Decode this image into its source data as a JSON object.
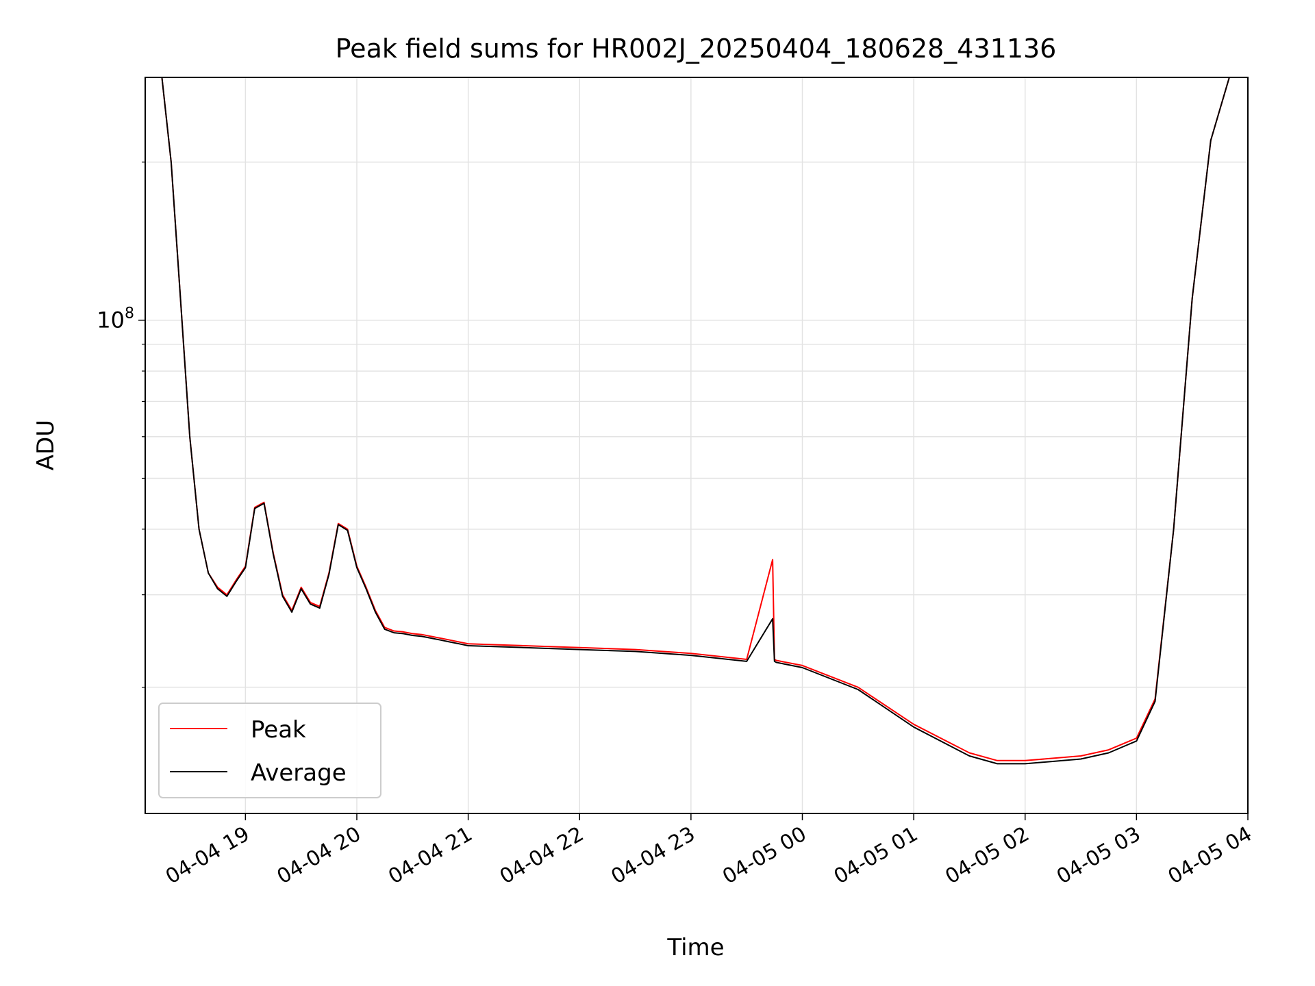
{
  "chart_data": {
    "type": "line",
    "title": "Peak field sums for HR002J_20250404_180628_431136",
    "xlabel": "Time",
    "ylabel": "ADU",
    "yscale": "log",
    "xlim": [
      "2025-04-04 18:06",
      "2025-04-05 04:00"
    ],
    "ylim": [
      11500000,
      290000000
    ],
    "grid": true,
    "legend_position": "lower-left",
    "x_ticks": [
      {
        "t": "2025-04-04 19:00",
        "label": "04-04 19"
      },
      {
        "t": "2025-04-04 20:00",
        "label": "04-04 20"
      },
      {
        "t": "2025-04-04 21:00",
        "label": "04-04 21"
      },
      {
        "t": "2025-04-04 22:00",
        "label": "04-04 22"
      },
      {
        "t": "2025-04-04 23:00",
        "label": "04-04 23"
      },
      {
        "t": "2025-04-05 00:00",
        "label": "04-05 00"
      },
      {
        "t": "2025-04-05 01:00",
        "label": "04-05 01"
      },
      {
        "t": "2025-04-05 02:00",
        "label": "04-05 02"
      },
      {
        "t": "2025-04-05 03:00",
        "label": "04-05 03"
      },
      {
        "t": "2025-04-05 04:00",
        "label": "04-05 04"
      }
    ],
    "y_major_ticks": [
      {
        "value": 100000000,
        "base": "10",
        "exp": "8"
      }
    ],
    "y_minor_ticks": [
      20000000,
      30000000,
      40000000,
      50000000,
      60000000,
      70000000,
      80000000,
      90000000,
      200000000
    ],
    "series": [
      {
        "name": "Peak",
        "color": "#ff0000",
        "x": [
          "2025-04-04 18:06",
          "2025-04-04 18:15",
          "2025-04-04 18:20",
          "2025-04-04 18:25",
          "2025-04-04 18:30",
          "2025-04-04 18:35",
          "2025-04-04 18:40",
          "2025-04-04 18:45",
          "2025-04-04 18:50",
          "2025-04-04 18:55",
          "2025-04-04 19:00",
          "2025-04-04 19:05",
          "2025-04-04 19:10",
          "2025-04-04 19:15",
          "2025-04-04 19:20",
          "2025-04-04 19:25",
          "2025-04-04 19:30",
          "2025-04-04 19:35",
          "2025-04-04 19:40",
          "2025-04-04 19:45",
          "2025-04-04 19:50",
          "2025-04-04 19:55",
          "2025-04-04 20:00",
          "2025-04-04 20:05",
          "2025-04-04 20:10",
          "2025-04-04 20:15",
          "2025-04-04 20:20",
          "2025-04-04 20:25",
          "2025-04-04 20:30",
          "2025-04-04 20:35",
          "2025-04-04 20:40",
          "2025-04-04 20:45",
          "2025-04-04 20:50",
          "2025-04-04 20:55",
          "2025-04-04 21:00",
          "2025-04-04 21:30",
          "2025-04-04 22:00",
          "2025-04-04 22:30",
          "2025-04-04 23:00",
          "2025-04-04 23:30",
          "2025-04-04 23:44",
          "2025-04-04 23:45",
          "2025-04-04 23:46",
          "2025-04-05 00:00",
          "2025-04-05 00:30",
          "2025-04-05 01:00",
          "2025-04-05 01:30",
          "2025-04-05 01:45",
          "2025-04-05 02:00",
          "2025-04-05 02:30",
          "2025-04-05 02:45",
          "2025-04-05 03:00",
          "2025-04-05 03:10",
          "2025-04-05 03:20",
          "2025-04-05 03:30",
          "2025-04-05 03:40",
          "2025-04-05 03:50",
          "2025-04-05 04:00"
        ],
        "y": [
          290000000,
          290000000,
          200000000,
          110000000,
          60000000,
          40000000,
          33000000,
          31000000,
          30000000,
          32000000,
          34000000,
          44000000,
          45000000,
          36000000,
          30000000,
          28000000,
          31000000,
          29000000,
          28500000,
          33000000,
          41000000,
          40000000,
          34000000,
          31000000,
          28000000,
          26000000,
          25600000,
          25500000,
          25300000,
          25200000,
          25000000,
          24800000,
          24600000,
          24400000,
          24200000,
          24000000,
          23800000,
          23600000,
          23200000,
          22600000,
          35000000,
          22600000,
          22500000,
          22000000,
          20000000,
          17000000,
          15000000,
          14500000,
          14500000,
          14800000,
          15200000,
          16000000,
          19000000,
          40000000,
          110000000,
          220000000,
          290000000,
          290000000
        ]
      },
      {
        "name": "Average",
        "color": "#000000",
        "x": [
          "2025-04-04 18:06",
          "2025-04-04 18:15",
          "2025-04-04 18:20",
          "2025-04-04 18:25",
          "2025-04-04 18:30",
          "2025-04-04 18:35",
          "2025-04-04 18:40",
          "2025-04-04 18:45",
          "2025-04-04 18:50",
          "2025-04-04 18:55",
          "2025-04-04 19:00",
          "2025-04-04 19:05",
          "2025-04-04 19:10",
          "2025-04-04 19:15",
          "2025-04-04 19:20",
          "2025-04-04 19:25",
          "2025-04-04 19:30",
          "2025-04-04 19:35",
          "2025-04-04 19:40",
          "2025-04-04 19:45",
          "2025-04-04 19:50",
          "2025-04-04 19:55",
          "2025-04-04 20:00",
          "2025-04-04 20:05",
          "2025-04-04 20:10",
          "2025-04-04 20:15",
          "2025-04-04 20:20",
          "2025-04-04 20:25",
          "2025-04-04 20:30",
          "2025-04-04 20:35",
          "2025-04-04 20:40",
          "2025-04-04 20:45",
          "2025-04-04 20:50",
          "2025-04-04 20:55",
          "2025-04-04 21:00",
          "2025-04-04 21:30",
          "2025-04-04 22:00",
          "2025-04-04 22:30",
          "2025-04-04 23:00",
          "2025-04-04 23:30",
          "2025-04-04 23:44",
          "2025-04-04 23:45",
          "2025-04-04 23:46",
          "2025-04-05 00:00",
          "2025-04-05 00:30",
          "2025-04-05 01:00",
          "2025-04-05 01:30",
          "2025-04-05 01:45",
          "2025-04-05 02:00",
          "2025-04-05 02:30",
          "2025-04-05 02:45",
          "2025-04-05 03:00",
          "2025-04-05 03:10",
          "2025-04-05 03:20",
          "2025-04-05 03:30",
          "2025-04-05 03:40",
          "2025-04-05 03:50",
          "2025-04-05 04:00"
        ],
        "y": [
          290000000,
          290000000,
          200000000,
          110000000,
          60000000,
          40000000,
          33000000,
          30800000,
          29800000,
          31800000,
          33800000,
          43800000,
          44800000,
          35800000,
          29800000,
          27800000,
          30800000,
          28800000,
          28300000,
          32800000,
          40800000,
          39800000,
          33800000,
          30800000,
          27800000,
          25800000,
          25400000,
          25300000,
          25100000,
          25000000,
          24800000,
          24600000,
          24400000,
          24200000,
          24000000,
          23800000,
          23600000,
          23400000,
          23000000,
          22400000,
          27000000,
          22400000,
          22300000,
          21800000,
          19800000,
          16800000,
          14800000,
          14300000,
          14300000,
          14600000,
          15000000,
          15800000,
          18800000,
          40000000,
          110000000,
          220000000,
          290000000,
          290000000
        ]
      }
    ]
  }
}
